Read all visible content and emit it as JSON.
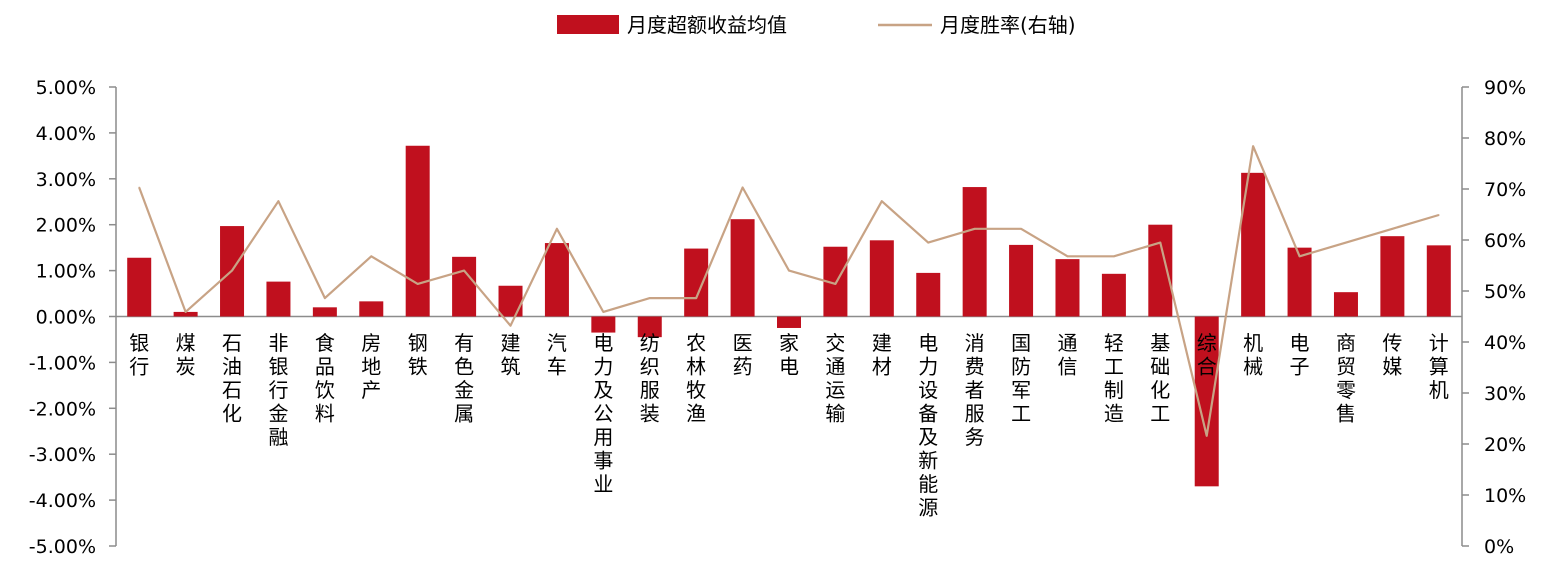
{
  "legend": {
    "bar_label": "月度超额收益均值",
    "line_label": "月度胜率(右轴)"
  },
  "colors": {
    "bar": "#C0101E",
    "line": "#C8A385",
    "axis": "#8C8C8C",
    "text": "#000000"
  },
  "chart_data": {
    "type": "bar",
    "categories": [
      "银行",
      "煤炭",
      "石油石化",
      "非银行金融",
      "食品饮料",
      "房地产",
      "钢铁",
      "有色金属",
      "建筑",
      "汽车",
      "电力及公用事业",
      "纺织服装",
      "农林牧渔",
      "医药",
      "家电",
      "交通运输",
      "建材",
      "电力设备及新能源",
      "消费者服务",
      "国防军工",
      "通信",
      "轻工制造",
      "基础化工",
      "综合",
      "机械",
      "电子",
      "商贸零售",
      "传媒",
      "计算机"
    ],
    "series": [
      {
        "name": "月度超额收益均值",
        "type": "bar",
        "axis": "left",
        "values": [
          1.28,
          0.1,
          1.97,
          0.76,
          0.2,
          0.33,
          3.72,
          1.3,
          0.67,
          1.6,
          -0.35,
          -0.45,
          1.48,
          2.12,
          -0.25,
          1.52,
          1.66,
          0.95,
          2.82,
          1.56,
          1.25,
          0.93,
          2.0,
          -3.7,
          3.13,
          1.5,
          0.53,
          1.75,
          1.55
        ]
      },
      {
        "name": "月度胜率(右轴)",
        "type": "line",
        "axis": "right",
        "values": [
          70.3,
          45.9,
          54.0,
          67.6,
          48.6,
          56.8,
          51.4,
          54.0,
          43.2,
          62.2,
          45.9,
          48.6,
          48.6,
          70.3,
          54.0,
          51.4,
          67.6,
          59.5,
          62.2,
          62.2,
          56.8,
          56.8,
          59.5,
          21.6,
          78.4,
          56.8,
          59.5,
          62.2,
          64.9
        ]
      }
    ],
    "y_left": {
      "min": -5,
      "max": 5,
      "ticks": [
        "5.00%",
        "4.00%",
        "3.00%",
        "2.00%",
        "1.00%",
        "0.00%",
        "-1.00%",
        "-2.00%",
        "-3.00%",
        "-4.00%",
        "-5.00%"
      ]
    },
    "y_right": {
      "min": 0,
      "max": 90,
      "ticks": [
        "90%",
        "80%",
        "70%",
        "60%",
        "50%",
        "40%",
        "30%",
        "20%",
        "10%",
        "0%"
      ]
    },
    "grid": false,
    "legend_position": "top-center"
  }
}
